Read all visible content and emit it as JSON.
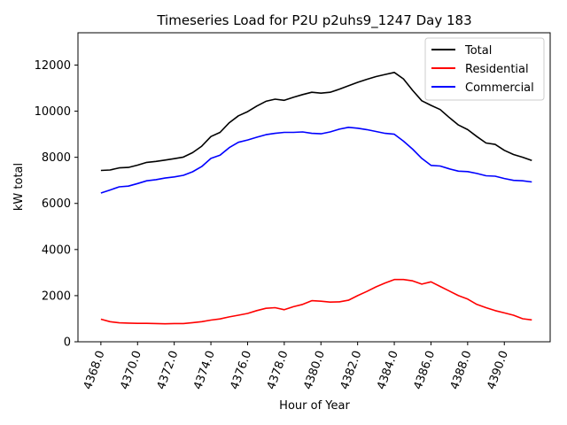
{
  "chart_data": {
    "type": "line",
    "title": "Timeseries Load for P2U p2uhs9_1247  Day 183",
    "xlabel": "Hour of Year",
    "ylabel": "kW total",
    "xlim": [
      4366.75,
      4392.5
    ],
    "ylim": [
      0,
      13400
    ],
    "xticks": [
      4368,
      4370,
      4372,
      4374,
      4376,
      4378,
      4380,
      4382,
      4384,
      4386,
      4388,
      4390
    ],
    "xtick_labels": [
      "4368.0",
      "4370.0",
      "4372.0",
      "4374.0",
      "4376.0",
      "4378.0",
      "4380.0",
      "4382.0",
      "4384.0",
      "4386.0",
      "4388.0",
      "4390.0"
    ],
    "yticks": [
      0,
      2000,
      4000,
      6000,
      8000,
      10000,
      12000
    ],
    "ytick_labels": [
      "0",
      "2000",
      "4000",
      "6000",
      "8000",
      "10000",
      "12000"
    ],
    "legend_position": "upper-right",
    "x": [
      4368.0,
      4368.5,
      4369.0,
      4369.5,
      4370.0,
      4370.5,
      4371.0,
      4371.5,
      4372.0,
      4372.5,
      4373.0,
      4373.5,
      4374.0,
      4374.5,
      4375.0,
      4375.5,
      4376.0,
      4376.5,
      4377.0,
      4377.5,
      4378.0,
      4378.5,
      4379.0,
      4379.5,
      4380.0,
      4380.5,
      4381.0,
      4381.5,
      4382.0,
      4382.5,
      4383.0,
      4383.5,
      4384.0,
      4384.5,
      4385.0,
      4385.5,
      4386.0,
      4386.5,
      4387.0,
      4387.5,
      4388.0,
      4388.5,
      4389.0,
      4389.5,
      4390.0,
      4390.5,
      4391.0,
      4391.5
    ],
    "series": [
      {
        "name": "Total",
        "color": "#000000",
        "values": [
          7430,
          7450,
          7540,
          7560,
          7660,
          7780,
          7820,
          7880,
          7940,
          8010,
          8200,
          8480,
          8900,
          9080,
          9500,
          9800,
          9980,
          10220,
          10430,
          10520,
          10470,
          10600,
          10720,
          10820,
          10780,
          10820,
          10950,
          11100,
          11250,
          11380,
          11500,
          11590,
          11680,
          11400,
          10900,
          10450,
          10250,
          10070,
          9720,
          9400,
          9200,
          8900,
          8620,
          8560,
          8300,
          8120,
          8000,
          7860
        ]
      },
      {
        "name": "Residential",
        "color": "#ff0000",
        "values": [
          980,
          870,
          820,
          810,
          800,
          800,
          790,
          780,
          790,
          790,
          830,
          870,
          940,
          990,
          1080,
          1150,
          1230,
          1350,
          1450,
          1480,
          1390,
          1520,
          1620,
          1780,
          1760,
          1720,
          1730,
          1800,
          2000,
          2180,
          2380,
          2550,
          2700,
          2700,
          2640,
          2500,
          2600,
          2400,
          2200,
          2000,
          1850,
          1620,
          1480,
          1350,
          1250,
          1150,
          1000,
          950
        ]
      },
      {
        "name": "Commercial",
        "color": "#0000ff",
        "values": [
          6450,
          6580,
          6720,
          6750,
          6860,
          6980,
          7030,
          7100,
          7150,
          7220,
          7370,
          7600,
          7950,
          8090,
          8420,
          8650,
          8750,
          8870,
          8980,
          9040,
          9080,
          9080,
          9100,
          9040,
          9020,
          9100,
          9220,
          9300,
          9260,
          9200,
          9120,
          9040,
          9000,
          8700,
          8350,
          7950,
          7650,
          7620,
          7500,
          7400,
          7380,
          7300,
          7200,
          7180,
          7080,
          7000,
          6980,
          6930
        ]
      }
    ]
  }
}
